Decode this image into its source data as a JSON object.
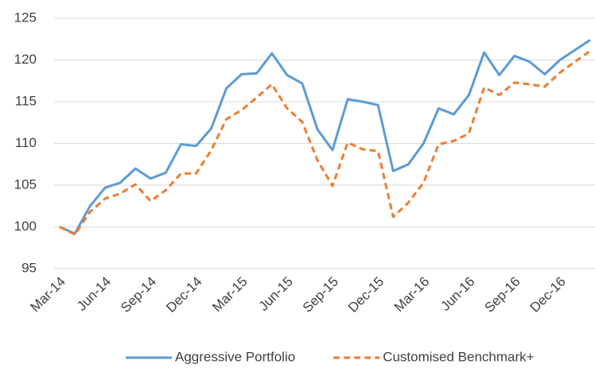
{
  "chart_data": {
    "type": "line",
    "categories": [
      "Mar-14",
      null,
      null,
      "Jun-14",
      null,
      null,
      "Sep-14",
      null,
      null,
      "Dec-14",
      null,
      null,
      "Mar-15",
      null,
      null,
      "Jun-15",
      null,
      null,
      "Sep-15",
      null,
      null,
      "Dec-15",
      null,
      null,
      "Mar-16",
      null,
      null,
      "Jun-16",
      null,
      null,
      "Sep-16",
      null,
      null,
      "Dec-16",
      null,
      null
    ],
    "series": [
      {
        "name": "Aggressive Portfolio",
        "color": "#5b9bd5",
        "dash": false,
        "values": [
          100,
          99.2,
          102.5,
          104.7,
          105.3,
          107,
          105.8,
          106.5,
          109.9,
          109.7,
          111.8,
          116.6,
          118.3,
          118.4,
          120.8,
          118.2,
          117.2,
          111.7,
          109.2,
          115.3,
          115,
          114.6,
          106.7,
          107.5,
          110,
          114.2,
          113.5,
          115.8,
          120.9,
          118.2,
          120.5,
          119.8,
          118.3,
          120,
          121.2,
          122.4
        ]
      },
      {
        "name": "Customised Benchmark+",
        "color": "#ed7d31",
        "dash": true,
        "values": [
          100,
          99.1,
          101.8,
          103.4,
          104,
          105.1,
          103.1,
          104.4,
          106.4,
          106.4,
          109.2,
          112.9,
          114,
          115.5,
          117.1,
          114.2,
          112.6,
          108,
          104.9,
          110.1,
          109.3,
          109.1,
          101.2,
          102.9,
          105.3,
          109.9,
          110.3,
          111.2,
          116.7,
          115.8,
          117.3,
          117.1,
          116.8,
          118.5,
          119.8,
          121.1
        ]
      }
    ],
    "ylim": [
      95,
      125
    ],
    "yticks": [
      95,
      100,
      105,
      110,
      115,
      120,
      125
    ],
    "grid": true,
    "legend": "bottom"
  }
}
